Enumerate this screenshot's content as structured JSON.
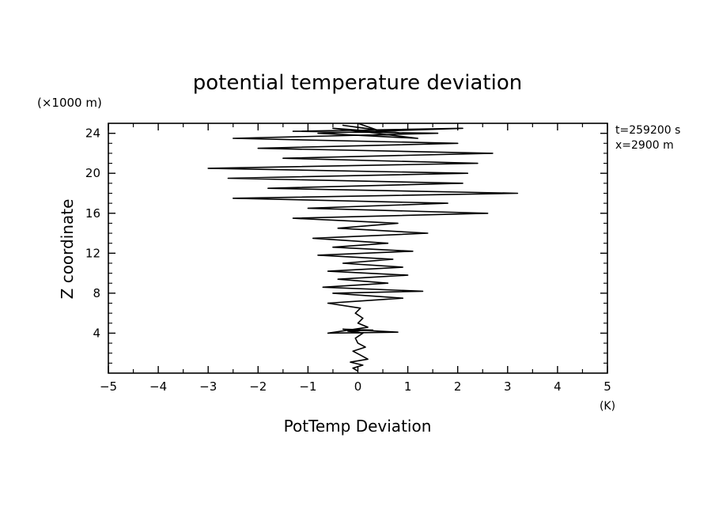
{
  "chart_data": {
    "type": "line",
    "title": "potential temperature deviation",
    "xlabel": "PotTemp Deviation",
    "ylabel": "Z coordinate",
    "x_unit": "(K)",
    "y_unit": "(×1000 m)",
    "annotations": [
      "t=259200 s",
      "x=2900 m"
    ],
    "xlim": [
      -5,
      5
    ],
    "ylim": [
      0,
      25
    ],
    "x_ticks": [
      -5,
      -4,
      -3,
      -2,
      -1,
      0,
      1,
      2,
      3,
      4,
      5
    ],
    "x_tick_labels": [
      "−5",
      "−4",
      "−3",
      "−2",
      "−1",
      "0",
      "1",
      "2",
      "3",
      "4",
      "5"
    ],
    "y_ticks": [
      4,
      8,
      12,
      16,
      20,
      24
    ],
    "y_tick_labels": [
      "4",
      "8",
      "12",
      "16",
      "20",
      "24"
    ],
    "grid": false,
    "series": [
      {
        "x": [
          0.0,
          -0.1,
          0.1,
          -0.15,
          0.2,
          0.05,
          -0.1,
          0.15,
          0.0,
          -0.05,
          0.1,
          0.0,
          -0.2,
          0.3,
          -0.3,
          0.8,
          -0.6,
          0.2,
          0.0,
          0.1,
          -0.05,
          0.05,
          -0.6,
          0.9,
          -0.5,
          1.3,
          -0.7,
          0.6,
          -0.4,
          1.0,
          -0.6,
          0.9,
          -0.3,
          0.7,
          -0.8,
          1.1,
          -0.5,
          0.6,
          -0.9,
          1.4,
          -0.4,
          0.8,
          -1.3,
          2.6,
          -1.0,
          1.8,
          -2.5,
          3.2,
          -1.8,
          2.1,
          -2.6,
          2.2,
          -3.0,
          2.4,
          -1.5,
          2.7,
          -2.0,
          2.0,
          -2.5,
          1.6,
          -1.3,
          2.1,
          -0.8,
          1.2,
          -0.5,
          0.9,
          -0.3,
          0.4,
          0.0
        ],
        "y": [
          0.2,
          0.5,
          0.8,
          1.1,
          1.4,
          1.8,
          2.2,
          2.6,
          3.0,
          3.5,
          4.0,
          4.1,
          4.2,
          4.3,
          4.4,
          4.1,
          4.0,
          4.6,
          5.0,
          5.5,
          6.0,
          6.5,
          7.0,
          7.5,
          8.0,
          8.2,
          8.6,
          9.0,
          9.4,
          9.8,
          10.2,
          10.6,
          11.0,
          11.4,
          11.8,
          12.2,
          12.6,
          13.0,
          13.5,
          14.0,
          14.5,
          15.0,
          15.5,
          16.0,
          16.5,
          17.0,
          17.5,
          18.0,
          18.5,
          19.0,
          19.5,
          20.0,
          20.5,
          21.0,
          21.5,
          22.0,
          22.5,
          23.0,
          23.5,
          24.0,
          24.2,
          24.5,
          24.0,
          23.5,
          24.5,
          24.0,
          24.8,
          24.3,
          25.0
        ]
      }
    ]
  }
}
